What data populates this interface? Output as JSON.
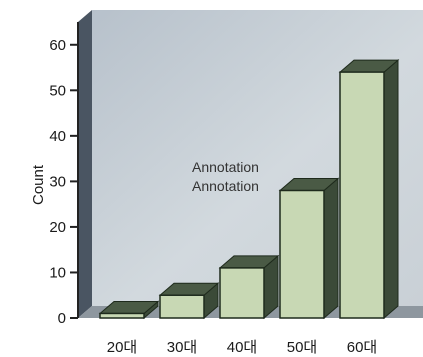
{
  "chart_data": {
    "type": "bar",
    "title": "",
    "xlabel": "",
    "ylabel": "Count",
    "categories": [
      "20대",
      "30대",
      "40대",
      "50대",
      "60대"
    ],
    "values": [
      1,
      5,
      11,
      28,
      54
    ],
    "ylim": [
      0,
      65
    ],
    "yticks": [
      0,
      10,
      20,
      30,
      40,
      50,
      60
    ],
    "grid": false,
    "legend": "none",
    "annotations": [
      "Annotation",
      "Annotation"
    ],
    "colors": {
      "bar_face": "#c8d8b4",
      "bar_side": "#3b4a38",
      "bar_top": "#4a5a45",
      "bar_outline": "#1e2a1c",
      "plot_background": "#c3ccd4",
      "plot_back_wall_left": "#4a5562",
      "axis": "#222222"
    }
  }
}
